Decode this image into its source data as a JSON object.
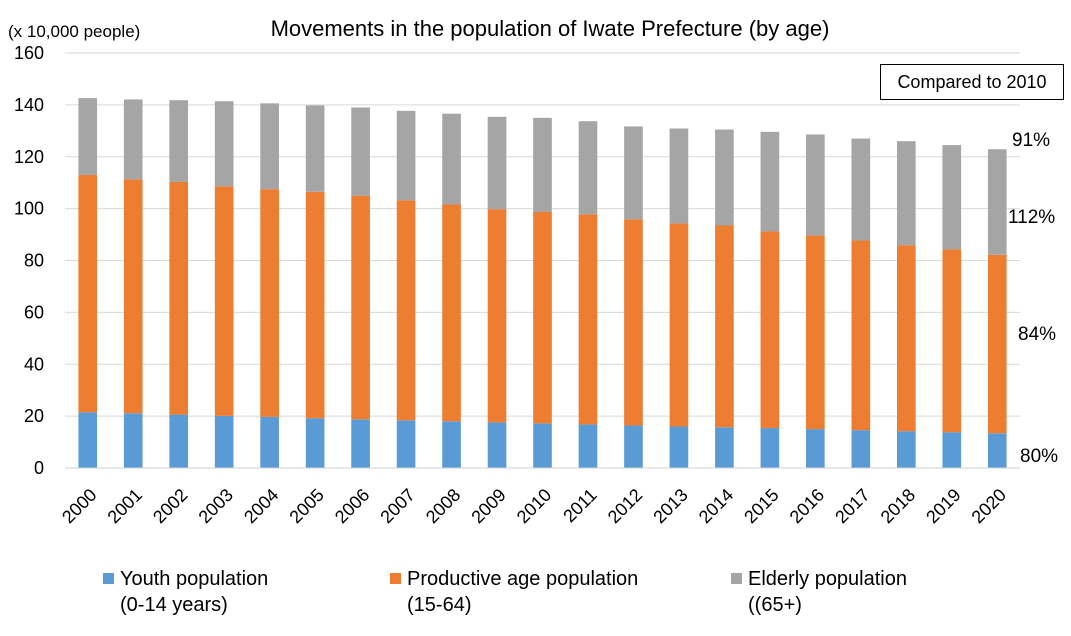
{
  "chart_data": {
    "type": "bar",
    "stacked": true,
    "title": "Movements in the population of Iwate Prefecture (by age)",
    "unit_label": "(x 10,000 people)",
    "categories": [
      "2000",
      "2001",
      "2002",
      "2003",
      "2004",
      "2005",
      "2006",
      "2007",
      "2008",
      "2009",
      "2010",
      "2011",
      "2012",
      "2013",
      "2014",
      "2015",
      "2016",
      "2017",
      "2018",
      "2019",
      "2020"
    ],
    "series": [
      {
        "name": "Youth population (0-14 years)",
        "color": "#5B9BD5",
        "values": [
          21.5,
          21.1,
          20.6,
          20.1,
          19.7,
          19.2,
          18.8,
          18.4,
          18.0,
          17.6,
          17.2,
          16.8,
          16.4,
          16.0,
          15.7,
          15.4,
          15.0,
          14.6,
          14.2,
          13.8,
          13.4
        ]
      },
      {
        "name": "Productive age population (15-64)",
        "color": "#ED7D31",
        "values": [
          91.5,
          90.2,
          89.7,
          88.5,
          87.8,
          87.3,
          86.2,
          84.8,
          83.6,
          82.2,
          81.5,
          81.0,
          79.5,
          78.3,
          77.8,
          75.8,
          74.6,
          73.1,
          71.7,
          70.5,
          68.8
        ]
      },
      {
        "name": "Elderly population ((65+)",
        "color": "#A5A5A5",
        "values": [
          29.6,
          30.8,
          31.5,
          32.8,
          33.1,
          33.3,
          34.0,
          34.5,
          35.0,
          35.6,
          36.3,
          35.9,
          35.8,
          36.6,
          37.0,
          38.4,
          39.0,
          39.3,
          40.1,
          40.2,
          40.7
        ]
      }
    ],
    "ylim": [
      0,
      160
    ],
    "yticks": [
      0,
      20,
      40,
      60,
      80,
      100,
      120,
      140,
      160
    ],
    "grid": true,
    "legend_position": "bottom",
    "annotation_box": "Compared to 2010",
    "percent_labels": [
      "91%",
      "112%",
      "84%",
      "80%"
    ]
  },
  "legend": {
    "youth_line1": "Youth population",
    "youth_line2": "(0-14 years)",
    "productive_line1": "Productive age population",
    "productive_line2": "(15-64)",
    "elderly_line1": "Elderly population",
    "elderly_line2": "((65+)"
  }
}
